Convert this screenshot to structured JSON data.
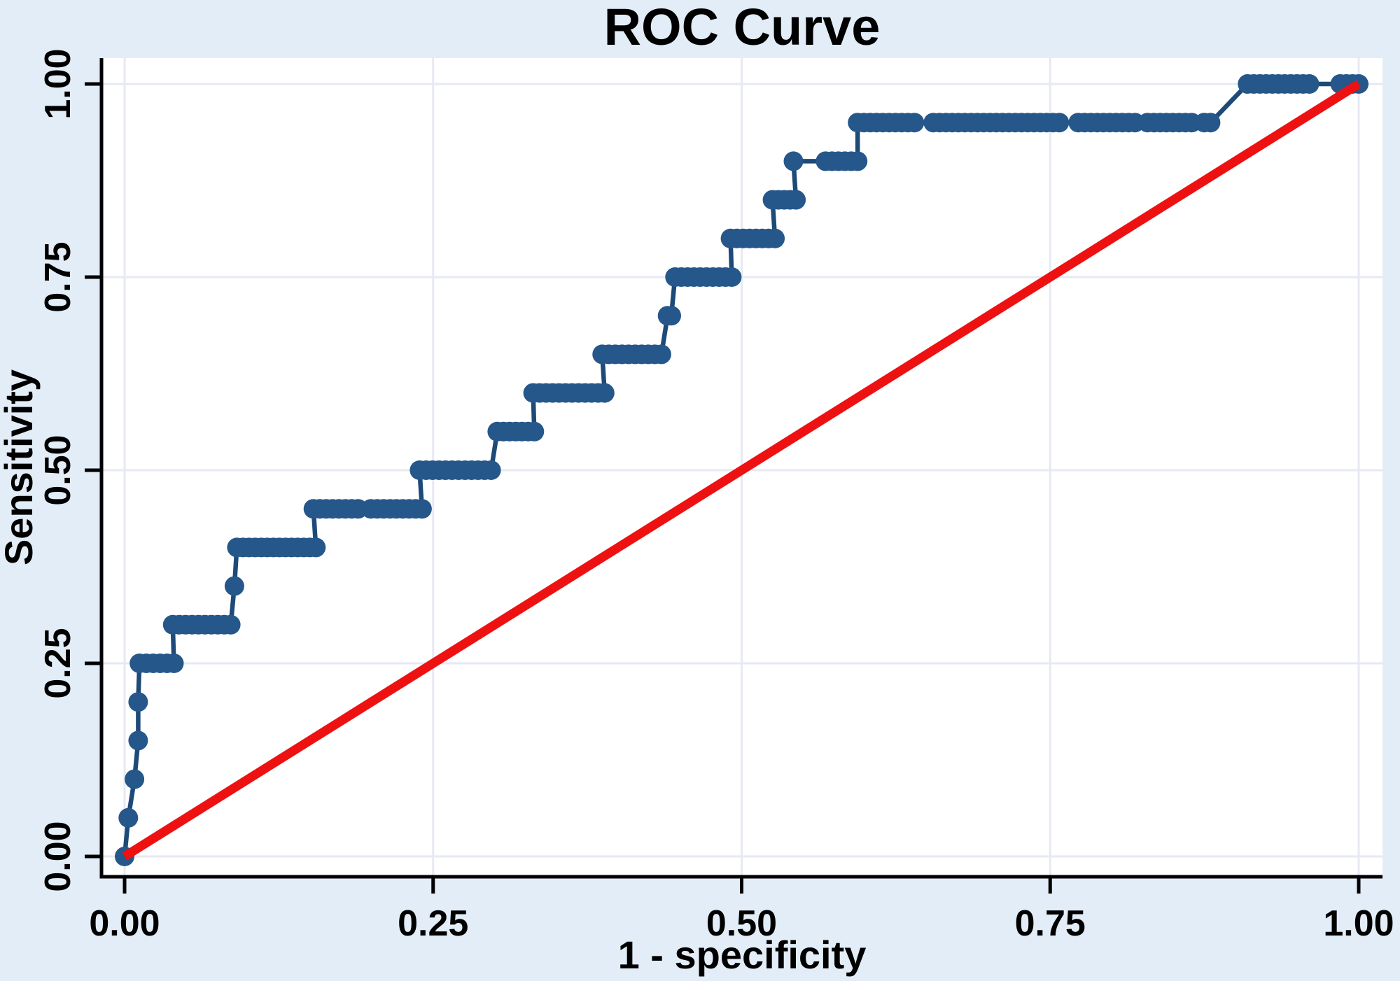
{
  "chart_data": {
    "type": "line",
    "title": "ROC Curve",
    "xlabel": "1 - specificity",
    "ylabel": "Sensitivity",
    "xlim": [
      0,
      1
    ],
    "ylim": [
      0,
      1
    ],
    "grid": true,
    "x_ticks": [
      0,
      0.25,
      0.5,
      0.75,
      1
    ],
    "x_tick_labels": [
      "0.00",
      "0.25",
      "0.50",
      "0.75",
      "1.00"
    ],
    "y_ticks": [
      0,
      0.25,
      0.5,
      0.75,
      1
    ],
    "y_tick_labels": [
      "0.00",
      "0.25",
      "0.50",
      "0.75",
      "1.00"
    ],
    "colors": {
      "outer_background": "#e3edf7",
      "plot_background": "#ffffff",
      "gridline": "#e7e9f3",
      "axis": "#000000",
      "roc_marker": "#25578a",
      "roc_line": "#1d4a78",
      "reference_line": "#ee1111",
      "text": "#000000"
    },
    "series": [
      {
        "name": "ROC step curve with markers",
        "style": "step-with-markers",
        "plateaus": [
          {
            "sensitivity": 0.0,
            "fpr_start": 0.0,
            "fpr_end": 0.0
          },
          {
            "sensitivity": 0.05,
            "fpr_start": 0.003,
            "fpr_end": 0.003
          },
          {
            "sensitivity": 0.1,
            "fpr_start": 0.008,
            "fpr_end": 0.008
          },
          {
            "sensitivity": 0.15,
            "fpr_start": 0.011,
            "fpr_end": 0.011
          },
          {
            "sensitivity": 0.2,
            "fpr_start": 0.011,
            "fpr_end": 0.011
          },
          {
            "sensitivity": 0.25,
            "fpr_start": 0.012,
            "fpr_end": 0.04
          },
          {
            "sensitivity": 0.3,
            "fpr_start": 0.039,
            "fpr_end": 0.086
          },
          {
            "sensitivity": 0.35,
            "fpr_start": 0.089,
            "fpr_end": 0.089
          },
          {
            "sensitivity": 0.4,
            "fpr_start": 0.091,
            "fpr_end": 0.155
          },
          {
            "sensitivity": 0.45,
            "fpr_start": 0.153,
            "fpr_end": 0.241
          },
          {
            "sensitivity": 0.5,
            "fpr_start": 0.239,
            "fpr_end": 0.297
          },
          {
            "sensitivity": 0.55,
            "fpr_start": 0.302,
            "fpr_end": 0.332
          },
          {
            "sensitivity": 0.6,
            "fpr_start": 0.331,
            "fpr_end": 0.389
          },
          {
            "sensitivity": 0.65,
            "fpr_start": 0.387,
            "fpr_end": 0.435
          },
          {
            "sensitivity": 0.7,
            "fpr_start": 0.44,
            "fpr_end": 0.443
          },
          {
            "sensitivity": 0.75,
            "fpr_start": 0.446,
            "fpr_end": 0.492
          },
          {
            "sensitivity": 0.8,
            "fpr_start": 0.491,
            "fpr_end": 0.527
          },
          {
            "sensitivity": 0.85,
            "fpr_start": 0.525,
            "fpr_end": 0.544
          },
          {
            "sensitivity": 0.9,
            "fpr_start": 0.542,
            "fpr_end": 0.594
          },
          {
            "sensitivity": 0.95,
            "fpr_start": 0.594,
            "fpr_end": 0.88
          },
          {
            "sensitivity": 1.0,
            "fpr_start": 0.91,
            "fpr_end": 1.0
          }
        ],
        "marker_step": 0.0051,
        "marker_gaps": [
          [
            0.192,
            0.198
          ],
          [
            0.546,
            0.564
          ],
          [
            0.644,
            0.651
          ],
          [
            0.762,
            0.769
          ],
          [
            0.82,
            0.827
          ],
          [
            0.866,
            0.872
          ],
          [
            0.96,
            0.982
          ]
        ]
      },
      {
        "name": "Reference diagonal",
        "style": "line",
        "points": [
          [
            0,
            0
          ],
          [
            1,
            1
          ]
        ]
      }
    ]
  }
}
